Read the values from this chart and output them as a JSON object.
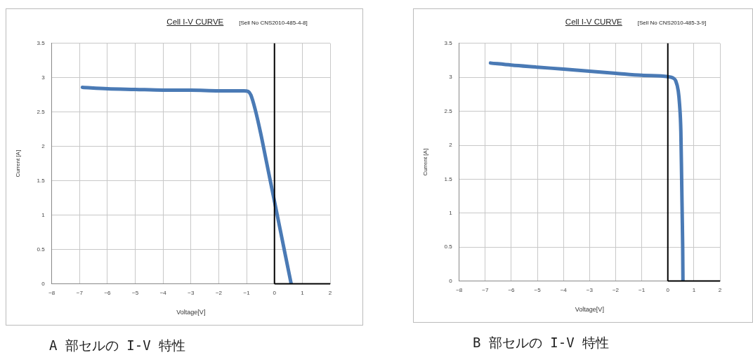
{
  "chart_data": [
    {
      "type": "line",
      "title": "Cell I-V CURVE",
      "subtitle": "[Sell No CNS2010-485-4-8]",
      "xlabel": "Voltage[V]",
      "ylabel": "Current [A]",
      "annotations": [
        "A 部セルの I-V 特性"
      ],
      "series": [
        {
          "color": "#4a7ab5",
          "x": [
            -6.9,
            -6,
            -5,
            -4,
            -3,
            -2,
            -1.1,
            -0.95,
            -0.85,
            -0.7,
            -0.5,
            -0.3,
            -0.1,
            0,
            0.2,
            0.4,
            0.6
          ],
          "values": [
            2.86,
            2.84,
            2.83,
            2.82,
            2.82,
            2.81,
            2.81,
            2.8,
            2.75,
            2.55,
            2.2,
            1.8,
            1.4,
            1.2,
            0.8,
            0.4,
            0
          ]
        }
      ],
      "xlim": [
        -8,
        2
      ],
      "xticks": [
        -8,
        -7,
        -6,
        -5,
        -4,
        -3,
        -2,
        -1,
        0,
        1,
        2
      ],
      "ylim": [
        0,
        3.5
      ],
      "yticks": [
        0,
        0.5,
        1,
        1.5,
        2,
        2.5,
        3,
        3.5
      ],
      "grid": true,
      "legend": false,
      "marker": "none",
      "line_style": "solid",
      "ref_lines": [
        {
          "axis": "x",
          "value": 0,
          "color": "#000000"
        },
        {
          "axis": "y",
          "value": 0,
          "color": "#000000"
        }
      ]
    },
    {
      "type": "line",
      "title": "Cell I-V CURVE",
      "subtitle": "[Sell No CNS2010-485-3-9]",
      "xlabel": "Voltage[V]",
      "ylabel": "Current [A]",
      "annotations": [
        "B 部セルの I-V 特性"
      ],
      "series": [
        {
          "color": "#4a7ab5",
          "x": [
            -6.8,
            -6,
            -5,
            -4,
            -3,
            -2,
            -1,
            0,
            0.2,
            0.3,
            0.4,
            0.45,
            0.5,
            0.53,
            0.55,
            0.57,
            0.58
          ],
          "values": [
            3.21,
            3.18,
            3.15,
            3.12,
            3.09,
            3.06,
            3.03,
            3.01,
            2.99,
            2.95,
            2.8,
            2.6,
            2.2,
            1.5,
            1.0,
            0.5,
            0
          ]
        }
      ],
      "xlim": [
        -8,
        2
      ],
      "xticks": [
        -8,
        -7,
        -6,
        -5,
        -4,
        -3,
        -2,
        -1,
        0,
        1,
        2
      ],
      "ylim": [
        0,
        3.5
      ],
      "yticks": [
        0,
        0.5,
        1,
        1.5,
        2,
        2.5,
        3,
        3.5
      ],
      "grid": true,
      "legend": false,
      "marker": "none",
      "line_style": "solid",
      "ref_lines": [
        {
          "axis": "x",
          "value": 0,
          "color": "#000000"
        },
        {
          "axis": "y",
          "value": 0,
          "color": "#000000"
        }
      ]
    }
  ]
}
